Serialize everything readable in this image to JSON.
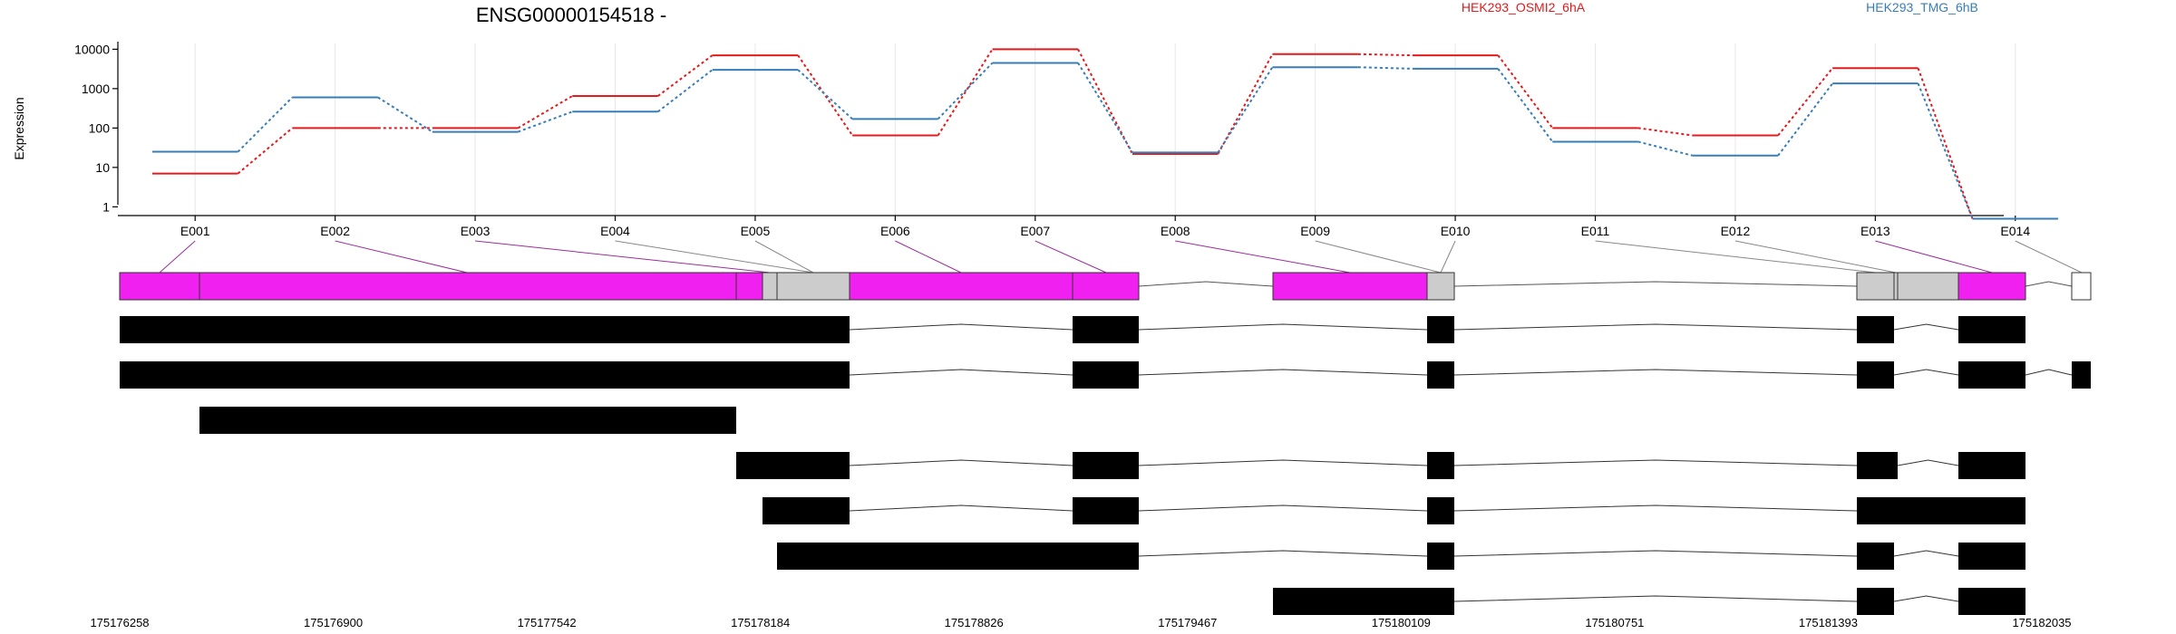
{
  "chart_data": {
    "type": "line",
    "title": "ENSG00000154518 -",
    "xlabel": "",
    "ylabel": "Expression",
    "y_scale": "log",
    "ylim": [
      0.6,
      14000
    ],
    "yticks": [
      1,
      10,
      100,
      1000,
      10000
    ],
    "grid": true,
    "legend_position": "top",
    "categories": [
      "E001",
      "E002",
      "E003",
      "E004",
      "E005",
      "E006",
      "E007",
      "E008",
      "E009",
      "E010",
      "E011",
      "E012",
      "E013",
      "E014"
    ],
    "series": [
      {
        "name": "HEK293_OSMI2_6hA",
        "color": "#e41a1c",
        "values": [
          7,
          100,
          100,
          650,
          7000,
          65,
          10000,
          22,
          7500,
          7000,
          100,
          65,
          3300,
          0.5
        ]
      },
      {
        "name": "HEK293_TMG_6hB",
        "color": "#377eb8",
        "values": [
          25,
          600,
          80,
          260,
          3000,
          170,
          4500,
          24,
          3500,
          3200,
          45,
          20,
          1350,
          0.5
        ]
      }
    ]
  },
  "gene_model": {
    "exon_colors": {
      "differential": "#f020f0",
      "normal": "#cccccc",
      "unannotated": "#ffffff",
      "transcript": "#000000"
    },
    "genomic_ticks": [
      "175176258",
      "175176900",
      "175177542",
      "175178184",
      "175178826",
      "175179467",
      "175180109",
      "175180751",
      "175181393",
      "175182035"
    ]
  }
}
